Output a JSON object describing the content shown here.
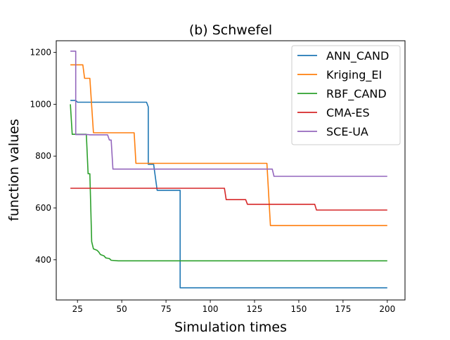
{
  "chart_data": {
    "type": "line",
    "title": "(b) Schwefel",
    "xlabel": "Simulation times",
    "ylabel": "function values",
    "xlim": [
      13,
      210
    ],
    "ylim": [
      245,
      1245
    ],
    "xticks": [
      25,
      50,
      75,
      100,
      125,
      150,
      175,
      200
    ],
    "yticks": [
      400,
      600,
      800,
      1000,
      1200
    ],
    "grid": false,
    "legend_position": "top-right",
    "series": [
      {
        "name": "ANN_CAND",
        "color": "#1f77b4",
        "points": [
          [
            21,
            1015
          ],
          [
            24,
            1015
          ],
          [
            25,
            1008
          ],
          [
            64,
            1008
          ],
          [
            65,
            990
          ],
          [
            65,
            768
          ],
          [
            68,
            768
          ],
          [
            70,
            668
          ],
          [
            83,
            668
          ],
          [
            83,
            292
          ],
          [
            200,
            292
          ]
        ]
      },
      {
        "name": "Kriging_EI",
        "color": "#ff7f0e",
        "points": [
          [
            21,
            1152
          ],
          [
            28,
            1152
          ],
          [
            29,
            1100
          ],
          [
            32,
            1100
          ],
          [
            34,
            890
          ],
          [
            57,
            890
          ],
          [
            58,
            772
          ],
          [
            132,
            772
          ],
          [
            134,
            532
          ],
          [
            200,
            532
          ]
        ]
      },
      {
        "name": "RBF_CAND",
        "color": "#2ca02c",
        "points": [
          [
            21,
            1000
          ],
          [
            22,
            884
          ],
          [
            30,
            884
          ],
          [
            31,
            732
          ],
          [
            32,
            732
          ],
          [
            33,
            470
          ],
          [
            34,
            442
          ],
          [
            36,
            437
          ],
          [
            37,
            430
          ],
          [
            38,
            420
          ],
          [
            40,
            415
          ],
          [
            41,
            407
          ],
          [
            43,
            405
          ],
          [
            44,
            398
          ],
          [
            48,
            396
          ],
          [
            200,
            396
          ]
        ]
      },
      {
        "name": "CMA-ES",
        "color": "#d62728",
        "points": [
          [
            21,
            676
          ],
          [
            108,
            676
          ],
          [
            109,
            632
          ],
          [
            120,
            632
          ],
          [
            121,
            614
          ],
          [
            159,
            614
          ],
          [
            160,
            592
          ],
          [
            200,
            592
          ]
        ]
      },
      {
        "name": "SCE-UA",
        "color": "#9467bd",
        "points": [
          [
            21,
            1205
          ],
          [
            24,
            1205
          ],
          [
            24,
            883
          ],
          [
            31,
            883
          ],
          [
            32,
            882
          ],
          [
            42,
            882
          ],
          [
            43,
            862
          ],
          [
            44,
            862
          ],
          [
            45,
            750
          ],
          [
            135,
            750
          ],
          [
            136,
            722
          ],
          [
            200,
            722
          ]
        ]
      }
    ]
  }
}
